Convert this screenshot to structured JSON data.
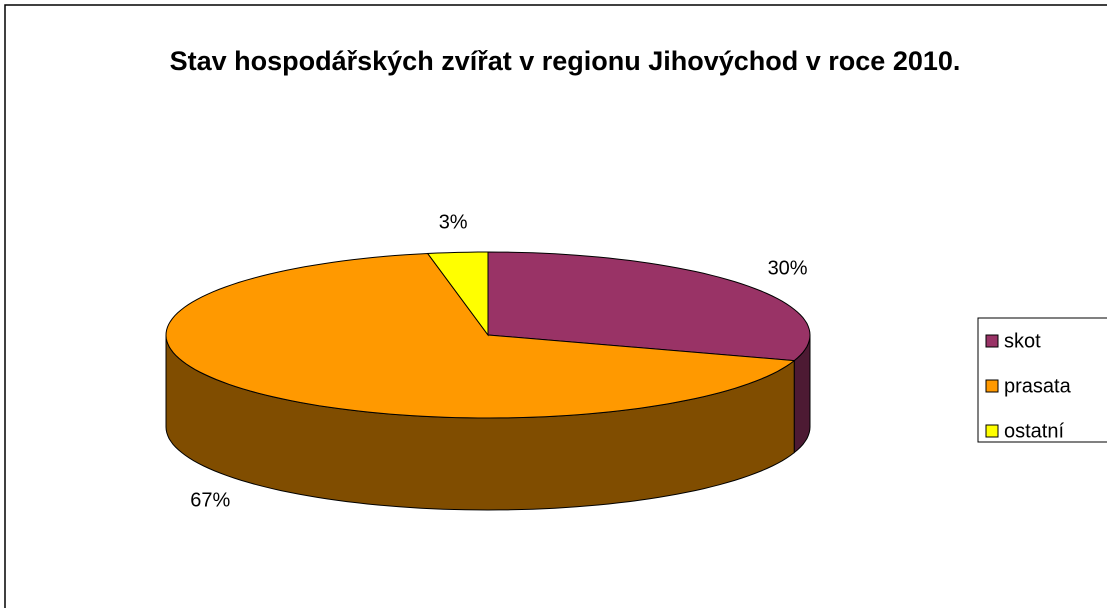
{
  "chart_data": {
    "type": "pie",
    "title": "Stav hospodářských zvířat v regionu Jihovýchod v roce 2010.",
    "categories": [
      "skot",
      "prasata",
      "ostatní"
    ],
    "values": [
      30,
      67,
      3
    ],
    "value_labels": [
      "30%",
      "67%",
      "3%"
    ],
    "colors": [
      "#993366",
      "#FF9900",
      "#FFFF00"
    ],
    "legend": "right"
  }
}
